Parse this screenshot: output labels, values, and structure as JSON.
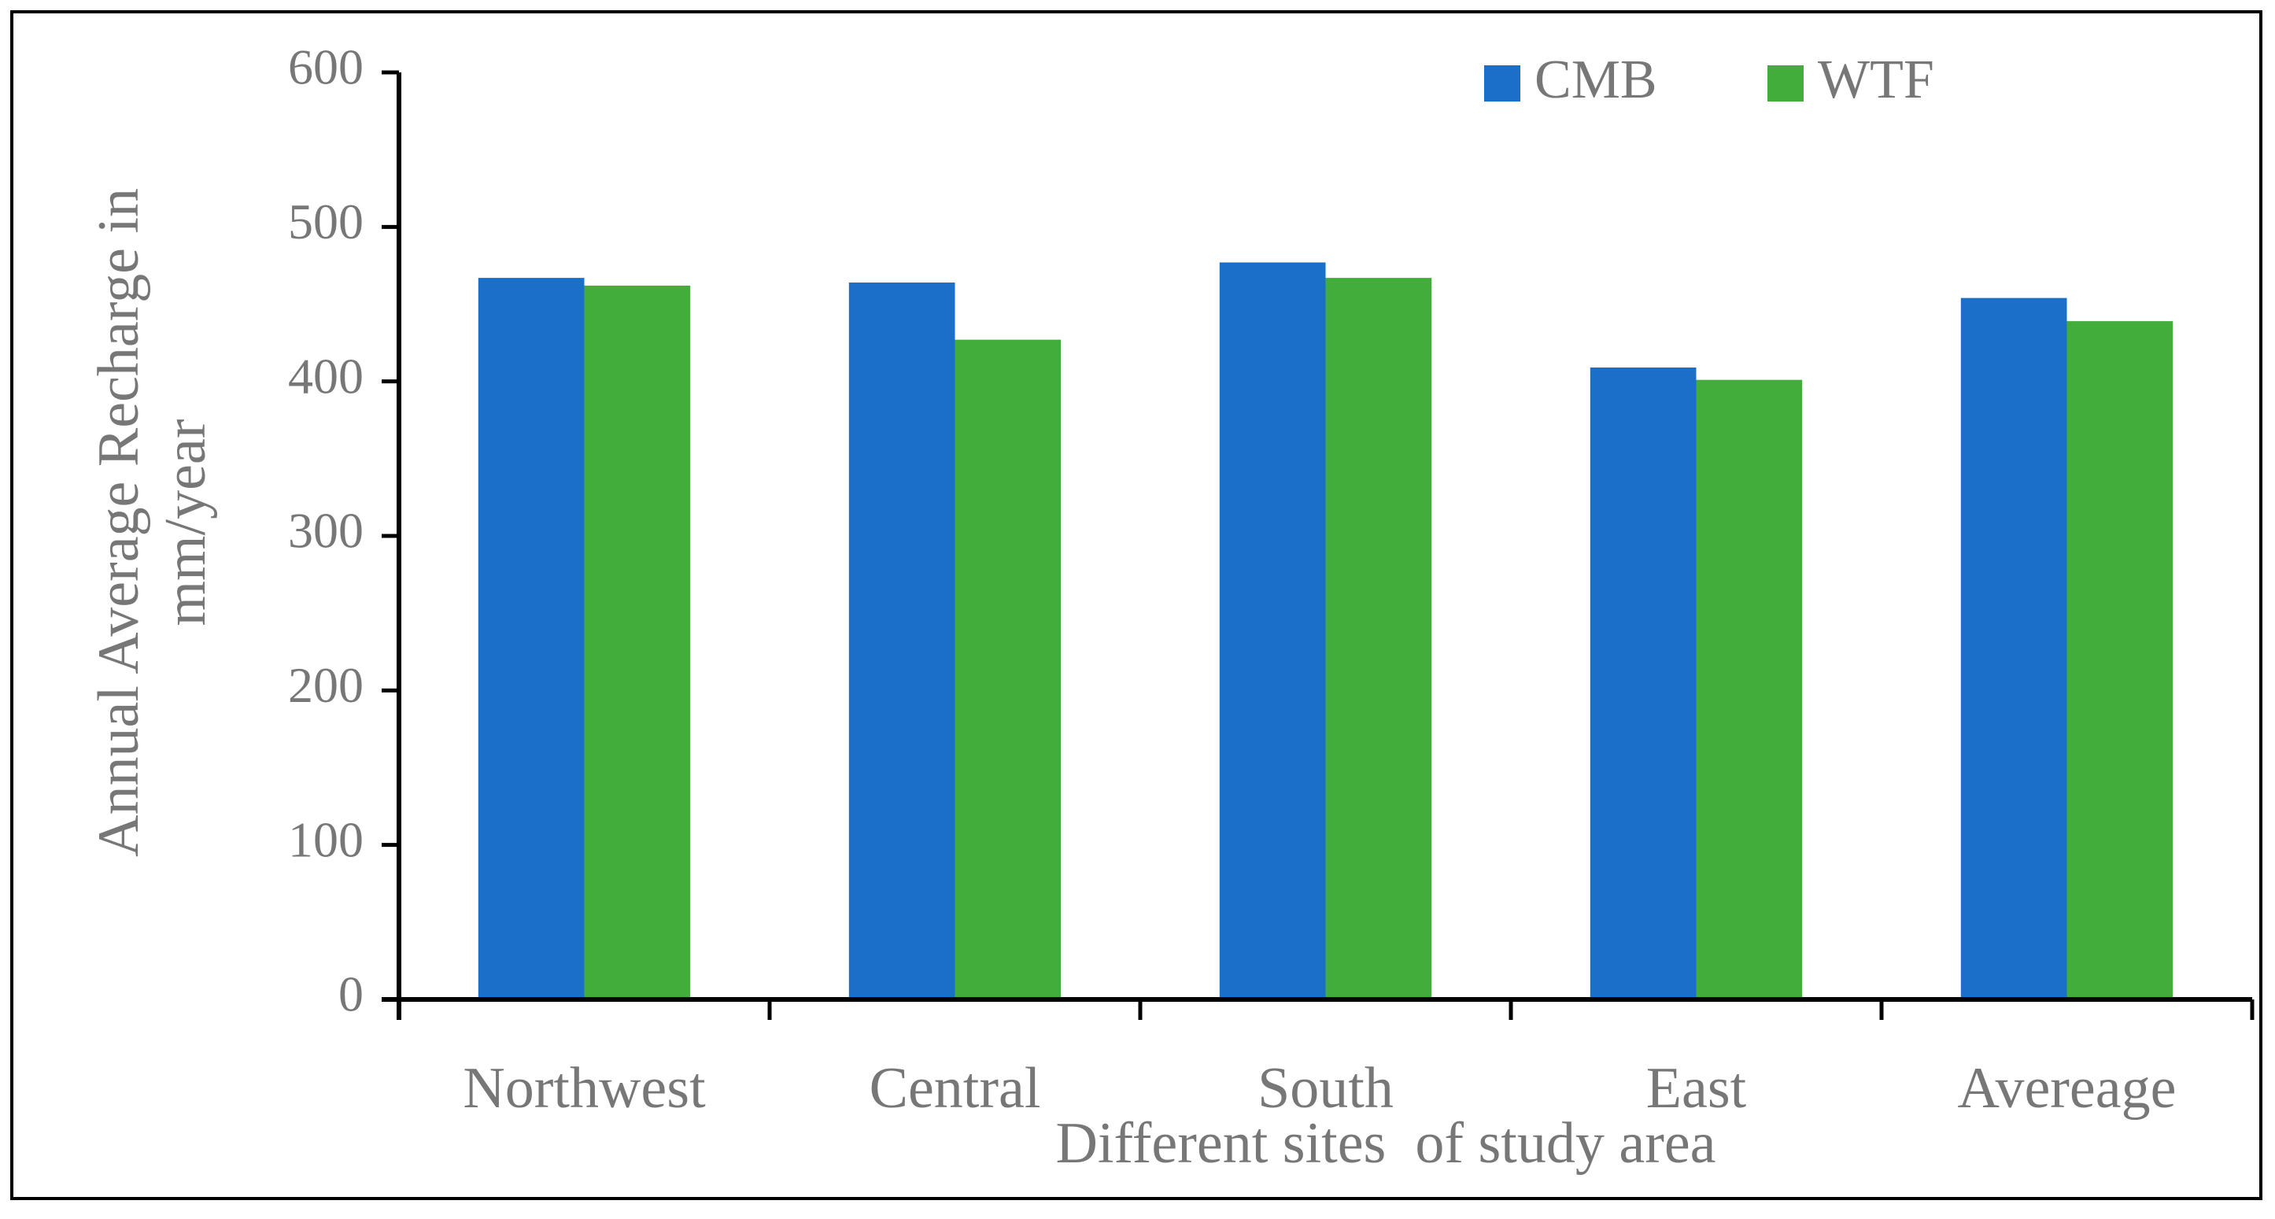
{
  "chart_data": {
    "type": "bar",
    "categories": [
      "Northwest",
      "Central",
      "South",
      "East",
      "Avereage"
    ],
    "series": [
      {
        "name": "CMB",
        "color": "#1a70c8",
        "values": [
          467,
          464,
          477,
          409,
          454
        ]
      },
      {
        "name": "WTF",
        "color": "#42ad3b",
        "values": [
          462,
          427,
          467,
          401,
          439
        ]
      }
    ],
    "ylim": [
      0,
      600
    ],
    "yticks": [
      0,
      100,
      200,
      300,
      400,
      500,
      600
    ],
    "y_label": "Annual Average Recharge in mm/year",
    "x_label": "Different sites  of study area",
    "legend": "top-right",
    "grid": false
  }
}
